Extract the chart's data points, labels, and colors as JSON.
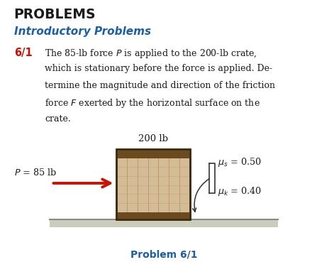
{
  "title_text": "PROBLEMS",
  "subtitle_text": "Introductory Problems",
  "problem_label": "6/1",
  "problem_lines": [
    "The 85-lb force $P$ is applied to the 200-lb crate,",
    "which is stationary before the force is applied. De-",
    "termine the magnitude and direction of the friction",
    "force $F$ exerted by the horizontal surface on the",
    "crate."
  ],
  "weight_label": "200 lb",
  "force_label": "$P$ = 85 lb",
  "mu_s_label": "$\\mu_s$ = 0.50",
  "mu_k_label": "$\\mu_k$ = 0.40",
  "problem_caption": "Problem 6/1",
  "bg_color": "#ffffff",
  "crate_fill": "#d4bc96",
  "crate_band": "#6b4a20",
  "crate_edge": "#3a2a10",
  "crate_plank_line": "#b89060",
  "ground_top_color": "#aaaaaa",
  "ground_fill": "#ccccbb",
  "arrow_color": "#cc1100",
  "title_color": "#1a1a1a",
  "subtitle_color": "#1a5fa8",
  "problem_num_color": "#cc1100",
  "caption_color": "#1a5fa8",
  "bracket_color": "#333333"
}
